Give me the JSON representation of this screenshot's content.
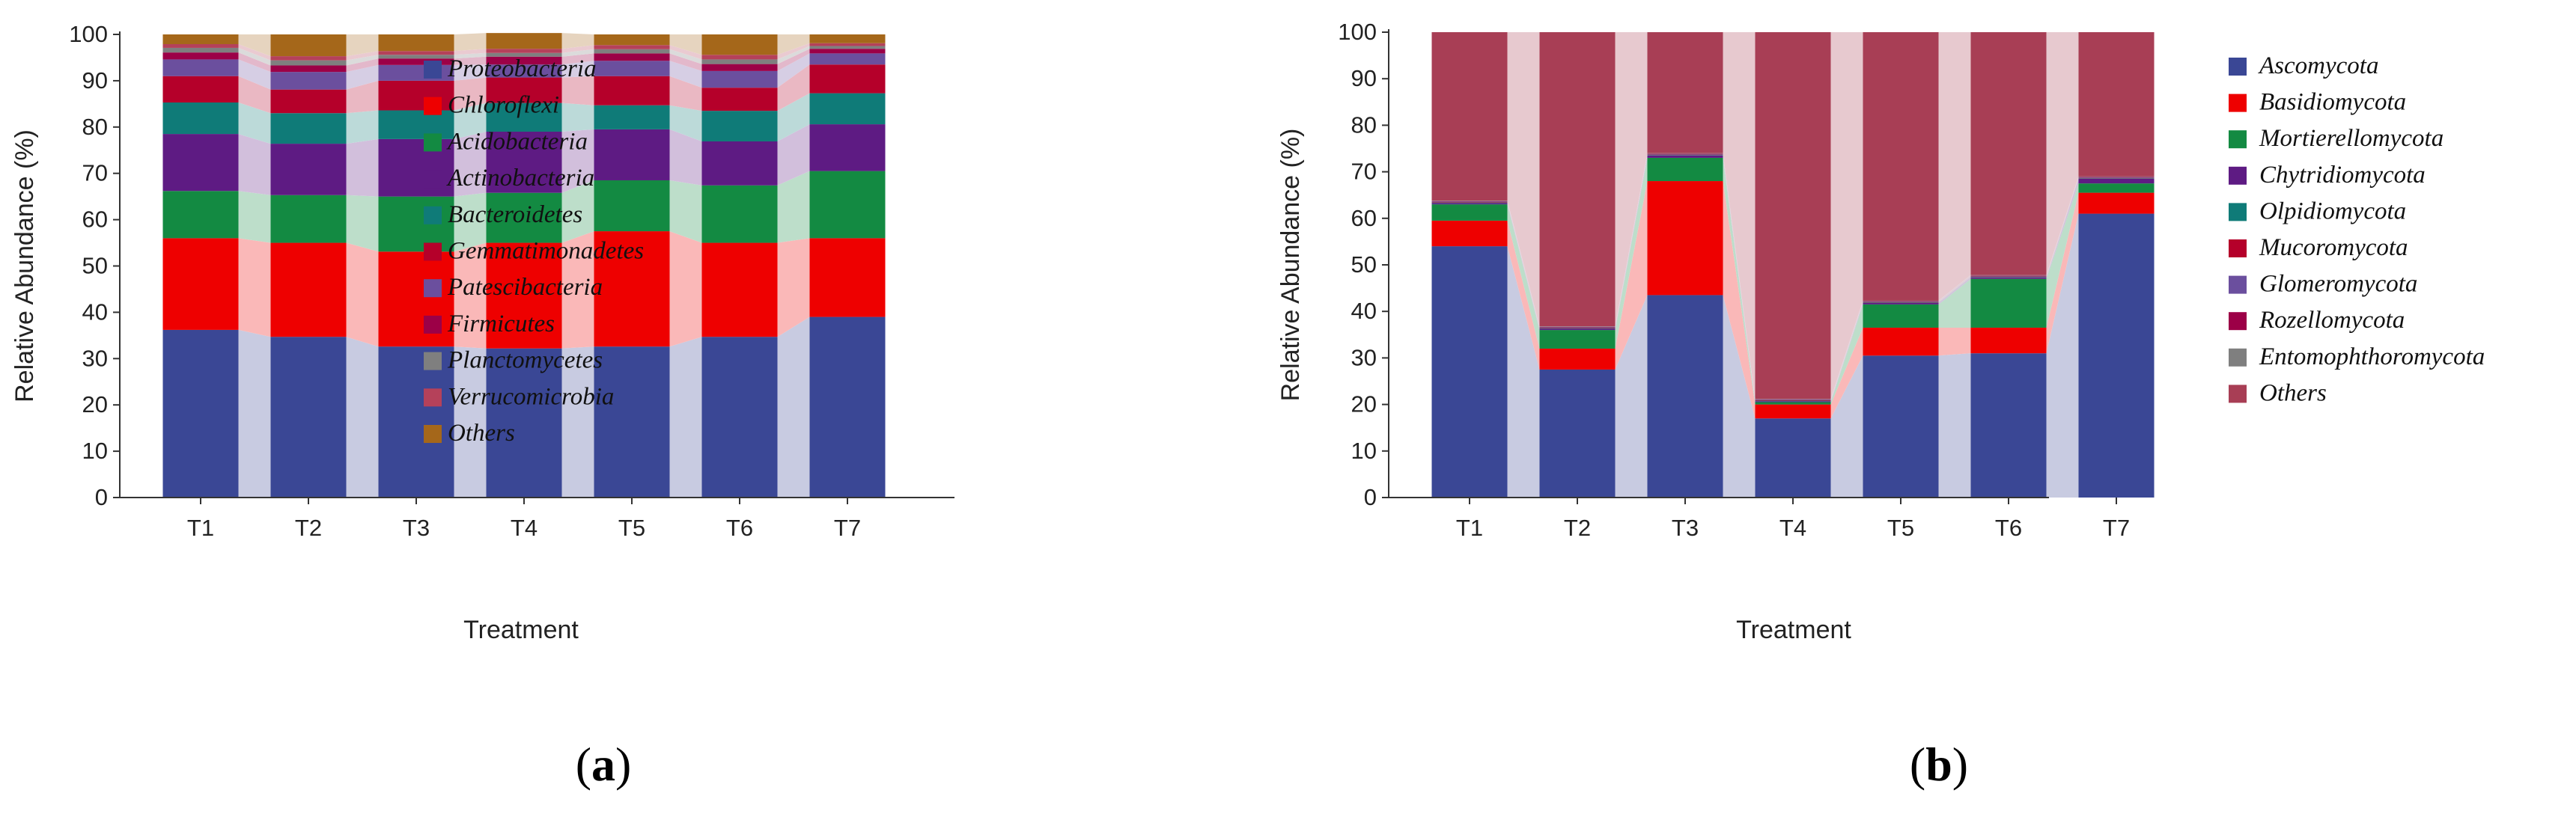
{
  "chart_data": [
    {
      "type": "bar",
      "stacked": true,
      "ylabel": "Relative Abundance (%)",
      "xlabel": "Treatment",
      "ylim": [
        0,
        100
      ],
      "yticks": [
        0,
        10,
        20,
        30,
        40,
        50,
        60,
        70,
        80,
        90,
        100
      ],
      "categories": [
        "T1",
        "T2",
        "T3",
        "T4",
        "T5",
        "T6",
        "T7"
      ],
      "panel_label_open": "(",
      "panel_label_letter": "a",
      "panel_label_close": ")",
      "series": [
        {
          "name": "Proteobacteria",
          "color": "#3a4795",
          "values": [
            36.2,
            34.7,
            32.6,
            32.2,
            32.6,
            34.7,
            39.0
          ]
        },
        {
          "name": "Chloroflexi",
          "color": "#ee0000",
          "values": [
            19.8,
            20.3,
            20.5,
            22.8,
            24.9,
            20.3,
            17.0
          ]
        },
        {
          "name": "Acidobacteria",
          "color": "#138a42",
          "values": [
            10.2,
            10.3,
            11.9,
            10.8,
            11.0,
            12.4,
            14.5
          ]
        },
        {
          "name": "Actinobacteria",
          "color": "#5e1b83",
          "values": [
            12.3,
            11.1,
            12.4,
            13.2,
            11.0,
            9.5,
            10.1
          ]
        },
        {
          "name": "Bacteroidetes",
          "color": "#0f7b78",
          "values": [
            6.8,
            6.6,
            6.2,
            6.2,
            5.2,
            6.6,
            6.7
          ]
        },
        {
          "name": "Gemmatimonadetes",
          "color": "#b5002a",
          "values": [
            5.7,
            5.1,
            6.4,
            5.5,
            6.3,
            5.0,
            6.2
          ]
        },
        {
          "name": "Patescibacteria",
          "color": "#6b4f9e",
          "values": [
            3.6,
            3.8,
            3.4,
            2.8,
            3.3,
            3.6,
            2.4
          ]
        },
        {
          "name": "Firmicutes",
          "color": "#9c0047",
          "values": [
            1.5,
            1.4,
            1.4,
            1.7,
            1.6,
            1.5,
            1.0
          ]
        },
        {
          "name": "Planctomycetes",
          "color": "#7f7f7f",
          "values": [
            1.0,
            1.1,
            0.8,
            0.8,
            0.9,
            1.0,
            0.6
          ]
        },
        {
          "name": "Verrucomicrobia",
          "color": "#b5415a",
          "values": [
            0.8,
            0.9,
            0.8,
            0.9,
            0.9,
            1.0,
            0.6
          ]
        },
        {
          "name": "Others",
          "color": "#a5671a",
          "values": [
            2.1,
            4.7,
            3.6,
            3.4,
            2.3,
            4.4,
            1.9
          ]
        }
      ]
    },
    {
      "type": "bar",
      "stacked": true,
      "ylabel": "Relative Abundance (%)",
      "xlabel": "Treatment",
      "ylim": [
        0,
        100
      ],
      "yticks": [
        0,
        10,
        20,
        30,
        40,
        50,
        60,
        70,
        80,
        90,
        100
      ],
      "categories": [
        "T1",
        "T2",
        "T3",
        "T4",
        "T5",
        "T6",
        "T7"
      ],
      "panel_label_open": "(",
      "panel_label_letter": "b",
      "panel_label_close": ")",
      "series": [
        {
          "name": "Ascomycota",
          "color": "#3a4795",
          "values": [
            54.0,
            27.5,
            43.5,
            17.0,
            30.5,
            31.0,
            61.0
          ]
        },
        {
          "name": "Basidiomycota",
          "color": "#ee0000",
          "values": [
            5.5,
            4.5,
            24.5,
            3.0,
            6.0,
            5.5,
            4.5
          ]
        },
        {
          "name": "Mortierellomycota",
          "color": "#138a42",
          "values": [
            3.5,
            4.0,
            5.0,
            0.5,
            5.0,
            10.5,
            2.0
          ]
        },
        {
          "name": "Chytridiomycota",
          "color": "#5e1b83",
          "values": [
            0.3,
            0.3,
            0.5,
            0.2,
            0.3,
            0.3,
            1.0
          ]
        },
        {
          "name": "Olpidiomycota",
          "color": "#0f7b78",
          "values": [
            0.1,
            0.1,
            0.1,
            0.1,
            0.1,
            0.1,
            0.1
          ]
        },
        {
          "name": "Mucoromycota",
          "color": "#b5002a",
          "values": [
            0.1,
            0.1,
            0.1,
            0.1,
            0.1,
            0.1,
            0.1
          ]
        },
        {
          "name": "Glomeromycota",
          "color": "#6b4f9e",
          "values": [
            0.1,
            0.1,
            0.1,
            0.1,
            0.1,
            0.1,
            0.1
          ]
        },
        {
          "name": "Rozellomycota",
          "color": "#9c0047",
          "values": [
            0.1,
            0.1,
            0.1,
            0.1,
            0.1,
            0.1,
            0.1
          ]
        },
        {
          "name": "Entomophthoromycota",
          "color": "#7f7f7f",
          "values": [
            0.1,
            0.1,
            0.1,
            0.1,
            0.1,
            0.1,
            0.1
          ]
        },
        {
          "name": "Others",
          "color": "#a83e55",
          "values": [
            36.2,
            63.2,
            26.0,
            78.8,
            57.7,
            52.2,
            31.0
          ]
        }
      ]
    }
  ]
}
